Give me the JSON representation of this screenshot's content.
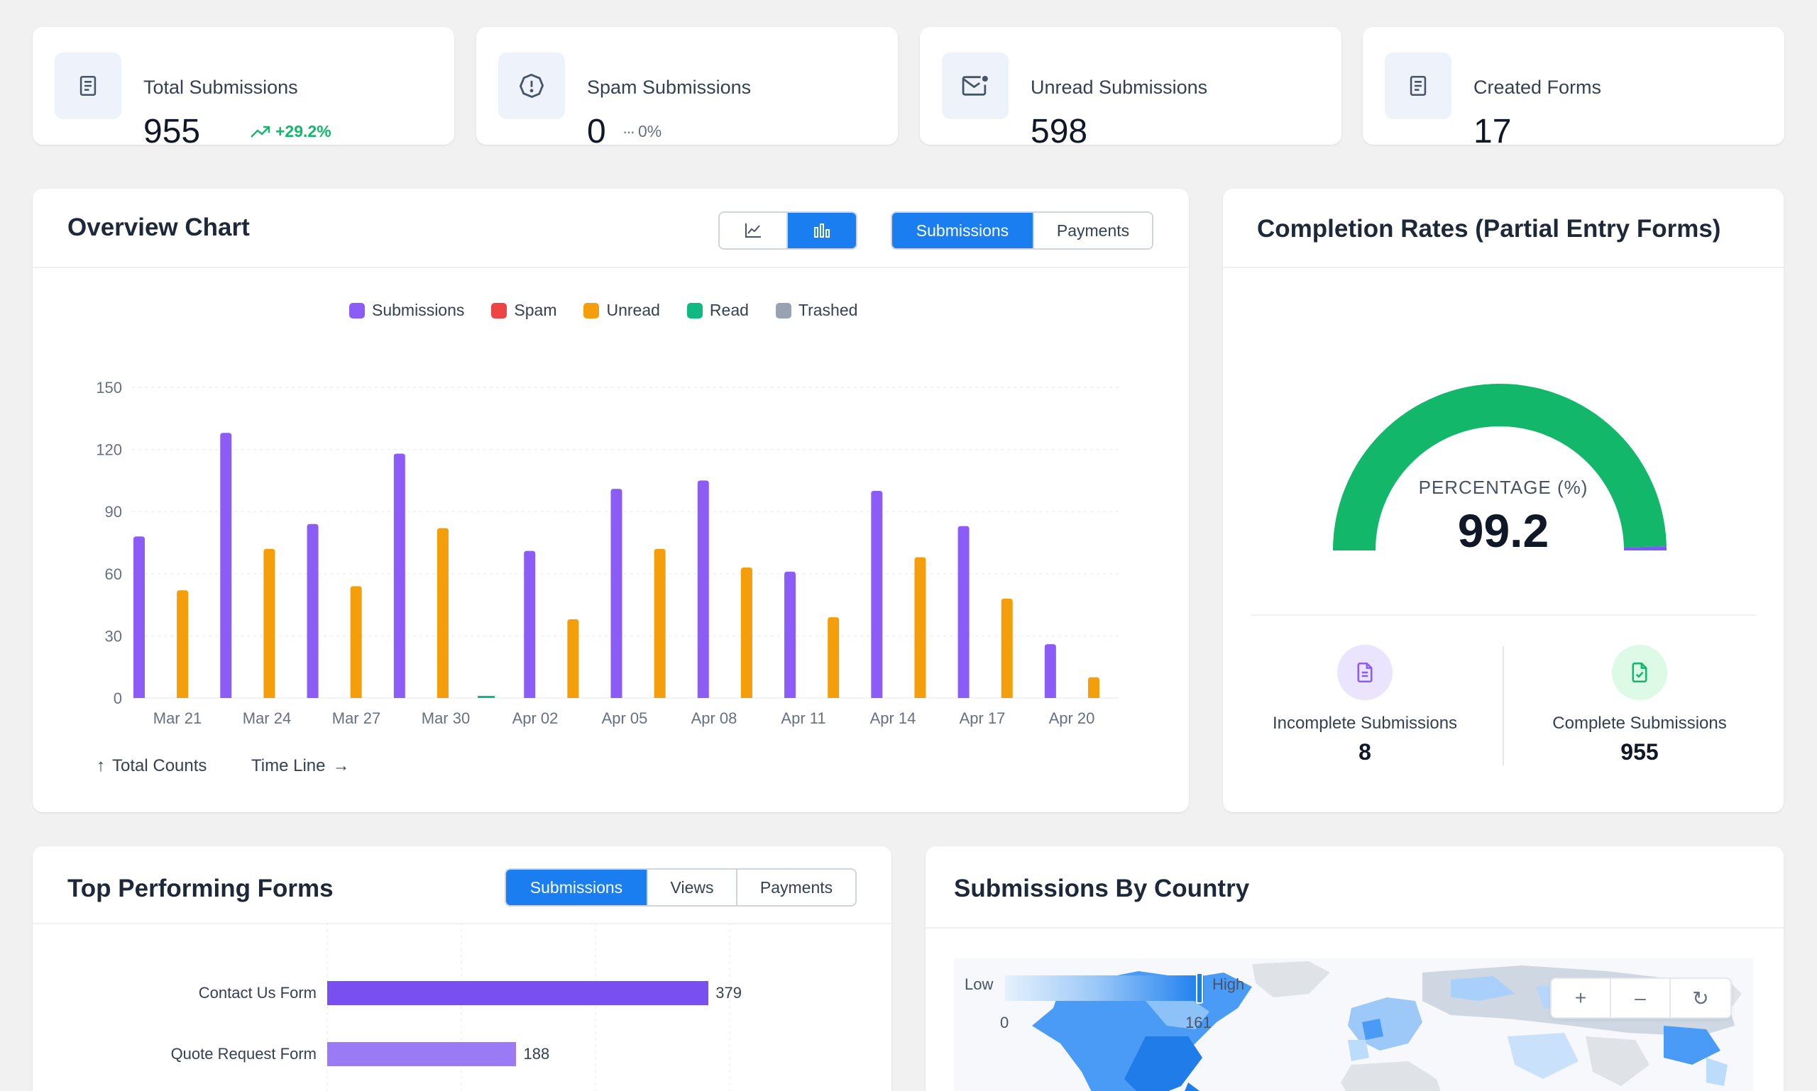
{
  "stats": [
    {
      "label": "Total Submissions",
      "value": "955",
      "delta": "+29.2%",
      "delta_color": "#12b76a",
      "icon": "form-icon"
    },
    {
      "label": "Spam Submissions",
      "value": "0",
      "delta": "0%",
      "delta_color": "#667085",
      "icon": "spam-icon"
    },
    {
      "label": "Unread Submissions",
      "value": "598",
      "icon": "unread-mail-icon"
    },
    {
      "label": "Created Forms",
      "value": "17",
      "icon": "form-icon"
    }
  ],
  "overview": {
    "title": "Overview Chart",
    "view_buttons": [
      "line-chart-icon",
      "bar-chart-icon"
    ],
    "tabs": [
      "Submissions",
      "Payments"
    ],
    "active_tab": "Submissions",
    "footer_y": "Total Counts",
    "footer_x": "Time Line"
  },
  "chart_data": {
    "type": "bar",
    "ylim": [
      0,
      150
    ],
    "yticks": [
      0,
      30,
      60,
      90,
      120,
      150
    ],
    "xticks": [
      "Mar 21",
      "Mar 24",
      "Mar 27",
      "Mar 30",
      "Apr 02",
      "Apr 05",
      "Apr 08",
      "Apr 11",
      "Apr 14",
      "Apr 17",
      "Apr 20"
    ],
    "legend": [
      {
        "name": "Submissions",
        "color": "#8b5cf6"
      },
      {
        "name": "Spam",
        "color": "#ef4444"
      },
      {
        "name": "Unread",
        "color": "#f59e0b"
      },
      {
        "name": "Read",
        "color": "#10b981"
      },
      {
        "name": "Trashed",
        "color": "#98a2b3"
      }
    ],
    "bars": [
      {
        "series": "Submissions",
        "value": 78
      },
      {
        "series": "Unread",
        "value": 52
      },
      {
        "series": "Submissions",
        "value": 128
      },
      {
        "series": "Unread",
        "value": 72
      },
      {
        "series": "Submissions",
        "value": 84
      },
      {
        "series": "Unread",
        "value": 54
      },
      {
        "series": "Submissions",
        "value": 118
      },
      {
        "series": "Unread",
        "value": 82
      },
      {
        "series": "Read",
        "value": 1
      },
      {
        "series": "Submissions",
        "value": 71
      },
      {
        "series": "Unread",
        "value": 38
      },
      {
        "series": "Submissions",
        "value": 101
      },
      {
        "series": "Unread",
        "value": 72
      },
      {
        "series": "Submissions",
        "value": 105
      },
      {
        "series": "Unread",
        "value": 63
      },
      {
        "series": "Submissions",
        "value": 61
      },
      {
        "series": "Unread",
        "value": 39
      },
      {
        "series": "Submissions",
        "value": 100
      },
      {
        "series": "Unread",
        "value": 68
      },
      {
        "series": "Submissions",
        "value": 83
      },
      {
        "series": "Unread",
        "value": 48
      },
      {
        "series": "Submissions",
        "value": 26
      },
      {
        "series": "Unread",
        "value": 10
      }
    ]
  },
  "completion": {
    "title": "Completion Rates (Partial Entry Forms)",
    "gauge_label": "PERCENTAGE (%)",
    "gauge_value": "99.2",
    "gauge_fraction": 0.992,
    "gauge_color": "#12b76a",
    "gauge_rest_color": "#7a5af8",
    "incomplete_label": "Incomplete Submissions",
    "incomplete_value": "8",
    "complete_label": "Complete Submissions",
    "complete_value": "955"
  },
  "top_forms": {
    "title": "Top Performing Forms",
    "tabs": [
      "Submissions",
      "Views",
      "Payments"
    ],
    "active_tab": "Submissions",
    "rows": [
      {
        "label": "Contact Us Form",
        "value": 379,
        "color": "#7a4ff0"
      },
      {
        "label": "Quote Request Form",
        "value": 188,
        "color": "#9b7bf5"
      }
    ]
  },
  "country": {
    "title": "Submissions By Country",
    "legend_low": "Low",
    "legend_high": "High",
    "legend_min": "0",
    "legend_max": "161",
    "zoom_in": "+",
    "zoom_out": "–",
    "reset": "↻"
  }
}
